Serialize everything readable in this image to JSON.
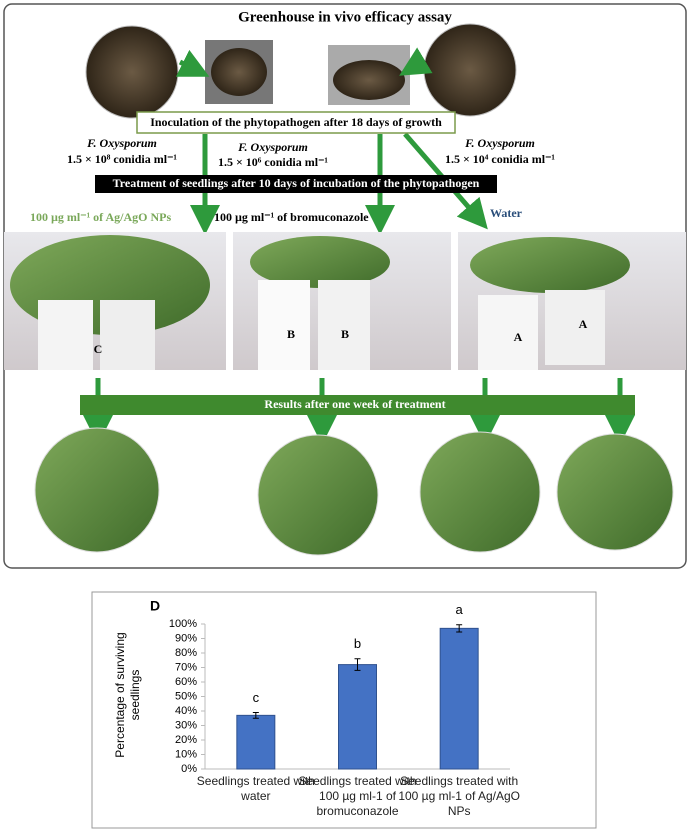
{
  "figure": {
    "title": "Greenhouse in vivo efficacy assay",
    "inoculation": "Inoculation of the phytopathogen after 18 days of growth",
    "doses": [
      {
        "organism": "F. Oxysporum",
        "concentration": "1.5 × 10⁸ conidia ml⁻¹"
      },
      {
        "organism": "F. Oxysporum",
        "concentration": "1.5 × 10⁶ conidia ml⁻¹"
      },
      {
        "organism": "F. Oxysporum",
        "concentration": "1.5 × 10⁴ conidia ml⁻¹"
      }
    ],
    "treatment": "Treatment of seedlings after 10 days of incubation of the phytopathogen",
    "treatments": [
      "100 µg ml⁻¹ of Ag/AgO NPs",
      "100 µg ml⁻¹ of bromuconazole",
      "Water"
    ],
    "pot_labels": [
      "C",
      "B",
      "B",
      "A",
      "A"
    ],
    "results": "Results after one week of treatment"
  },
  "chart_data": {
    "type": "bar",
    "panel_label": "D",
    "y_label": "Percentage of surviving seedlings",
    "categories": [
      "Seedlings treated with water",
      "Seedlings treated with 100 µg ml-1 of bromuconazole",
      "Seedlings treated with 100 µg ml-1 of Ag/AgO NPs"
    ],
    "values": [
      37,
      72,
      97
    ],
    "errors": [
      2,
      4,
      2.5
    ],
    "annotations": [
      "c",
      "b",
      "a"
    ],
    "color": "#4472c4",
    "ylim": [
      0,
      100
    ],
    "yticks": [
      {
        "value": 0,
        "label": "0%"
      },
      {
        "value": 10,
        "label": "10%"
      },
      {
        "value": 20,
        "label": "20%"
      },
      {
        "value": 30,
        "label": "30%"
      },
      {
        "value": 40,
        "label": "40%"
      },
      {
        "value": 50,
        "label": "50%"
      },
      {
        "value": 60,
        "label": "60%"
      },
      {
        "value": 70,
        "label": "70%"
      },
      {
        "value": 80,
        "label": "80%"
      },
      {
        "value": 90,
        "label": "90%"
      },
      {
        "value": 100,
        "label": "100%"
      }
    ],
    "grid": false
  }
}
